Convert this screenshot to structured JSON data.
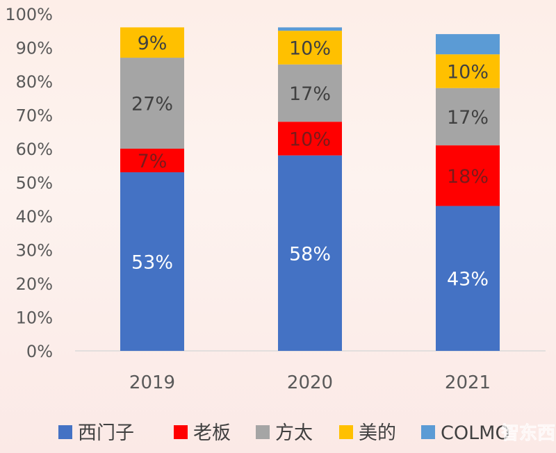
{
  "chart_data": {
    "type": "bar",
    "stacked": true,
    "categories": [
      "2019",
      "2020",
      "2021"
    ],
    "series": [
      {
        "name": "西门子",
        "color": "#4472C4",
        "label_color": "#ffffff",
        "values": [
          53,
          58,
          43
        ],
        "labels": [
          "53%",
          "58%",
          "43%"
        ]
      },
      {
        "name": "老板",
        "color": "#FF0000",
        "label_color": "#7a1a1a",
        "values": [
          7,
          10,
          18
        ],
        "labels": [
          "7%",
          "10%",
          "18%"
        ]
      },
      {
        "name": "方太",
        "color": "#A5A5A5",
        "label_color": "#404040",
        "values": [
          27,
          17,
          17
        ],
        "labels": [
          "27%",
          "17%",
          "17%"
        ]
      },
      {
        "name": "美的",
        "color": "#FFC000",
        "label_color": "#404040",
        "values": [
          9,
          10,
          10
        ],
        "labels": [
          "9%",
          "10%",
          "10%"
        ]
      },
      {
        "name": "COLMO",
        "color": "#5B9BD5",
        "label_color": "#404040",
        "values": [
          0,
          1,
          6
        ],
        "labels": [
          "",
          "",
          ""
        ]
      }
    ],
    "yticks": [
      "0%",
      "10%",
      "20%",
      "30%",
      "40%",
      "50%",
      "60%",
      "70%",
      "80%",
      "90%",
      "100%"
    ],
    "ylim": [
      0,
      100
    ],
    "grid": false,
    "legend": "bottom",
    "watermark": "智东西"
  }
}
